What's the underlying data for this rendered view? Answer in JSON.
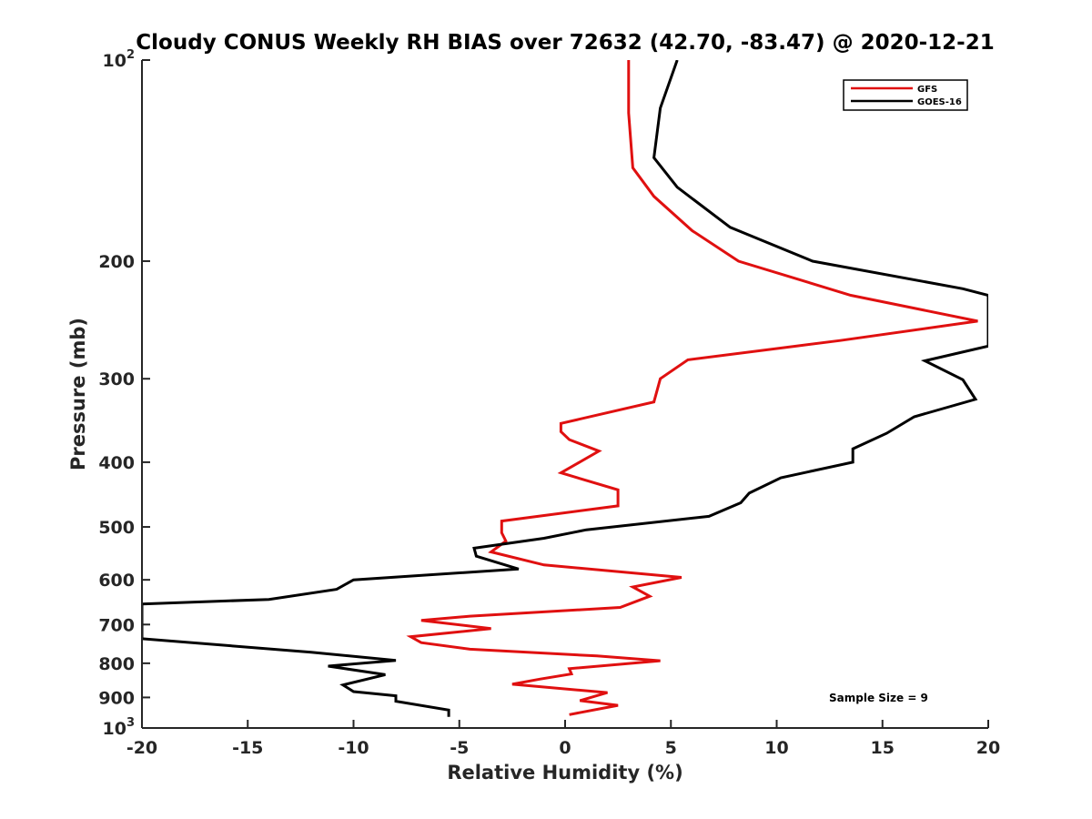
{
  "chart_data": {
    "type": "line",
    "title": "Cloudy CONUS Weekly RH BIAS over 72632 (42.70, -83.47) @ 2020-12-21",
    "xlabel": "Relative Humidity (%)",
    "ylabel": "Pressure (mb)",
    "xlim": [
      -20,
      20
    ],
    "ylim": [
      100,
      1000
    ],
    "y_scale": "log",
    "y_reversed": true,
    "x_ticks": [
      "-20",
      "-15",
      "-10",
      "-5",
      "0",
      "5",
      "10",
      "15",
      "20"
    ],
    "y_ticks": [
      {
        "value": 100,
        "base": "10",
        "exp": "2"
      },
      {
        "value": 200,
        "label": "200"
      },
      {
        "value": 300,
        "label": "300"
      },
      {
        "value": 400,
        "label": "400"
      },
      {
        "value": 500,
        "label": "500"
      },
      {
        "value": 600,
        "label": "600"
      },
      {
        "value": 700,
        "label": "700"
      },
      {
        "value": 800,
        "label": "800"
      },
      {
        "value": 900,
        "label": "900"
      },
      {
        "value": 1000,
        "base": "10",
        "exp": "3"
      }
    ],
    "grid": false,
    "legend_position": "top-right",
    "annotation": "Sample Size = 9",
    "series": [
      {
        "name": "GFS",
        "color": "#e01010",
        "x": [
          3.0,
          3.0,
          3.2,
          4.2,
          6.0,
          8.2,
          13.5,
          19.5,
          13.0,
          5.8,
          4.5,
          4.2,
          -0.2,
          -0.2,
          0.2,
          1.6,
          -0.2,
          2.5,
          2.5,
          -3.0,
          -3.0,
          -2.8,
          -3.5,
          -1.0,
          5.5,
          3.2,
          4.0,
          2.6,
          -4.5,
          -6.8,
          -3.5,
          -7.3,
          -6.8,
          -4.5,
          1.5,
          4.5,
          0.2,
          0.3,
          -1.2,
          -2.5,
          2.0,
          0.7,
          2.5,
          0.2
        ],
        "y": [
          100,
          120,
          145,
          160,
          180,
          200,
          225,
          246,
          263,
          281,
          300,
          325,
          350,
          360,
          370,
          385,
          415,
          440,
          465,
          490,
          510,
          525,
          545,
          570,
          595,
          615,
          635,
          660,
          680,
          690,
          710,
          730,
          745,
          762,
          780,
          793,
          815,
          830,
          845,
          860,
          885,
          910,
          925,
          955
        ]
      },
      {
        "name": "GOES-16",
        "color": "#000000",
        "x": [
          5.3,
          4.5,
          4.2,
          5.3,
          7.8,
          11.7,
          18.8,
          20.0,
          20.0,
          17.0,
          18.8,
          19.4,
          16.5,
          15.2,
          13.6,
          13.6,
          10.2,
          8.7,
          8.3,
          6.8,
          1.0,
          -1.0,
          -4.3,
          -4.2,
          -2.2,
          -10.0,
          -10.8,
          -14.0,
          -20.0,
          -20.0,
          -12.0,
          -8.0,
          -11.2,
          -8.5,
          -10.5,
          -10.0,
          -8.0,
          -8.0,
          -5.5,
          -5.5
        ],
        "y": [
          100,
          118,
          140,
          155,
          178,
          200,
          220,
          225,
          268,
          282,
          301,
          322,
          342,
          362,
          382,
          400,
          422,
          445,
          460,
          482,
          505,
          520,
          538,
          553,
          578,
          600,
          620,
          642,
          652,
          735,
          770,
          792,
          808,
          832,
          862,
          882,
          895,
          912,
          940,
          962
        ]
      }
    ]
  }
}
